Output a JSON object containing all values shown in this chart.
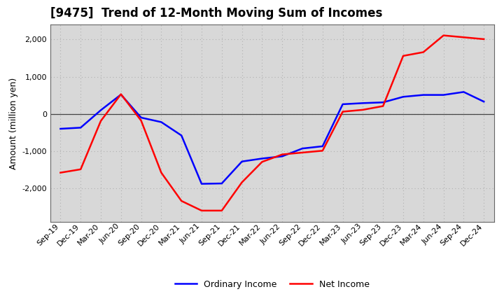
{
  "title": "[9475]  Trend of 12-Month Moving Sum of Incomes",
  "ylabel": "Amount (million yen)",
  "background_color": "#ffffff",
  "grid_color": "#b0b0b0",
  "plot_bg_color": "#d8d8d8",
  "x_labels": [
    "Sep-19",
    "Dec-19",
    "Mar-20",
    "Jun-20",
    "Sep-20",
    "Dec-20",
    "Mar-21",
    "Jun-21",
    "Sep-21",
    "Dec-21",
    "Mar-22",
    "Jun-22",
    "Sep-22",
    "Dec-22",
    "Mar-23",
    "Jun-23",
    "Sep-23",
    "Dec-23",
    "Mar-24",
    "Jun-24",
    "Sep-24",
    "Dec-24"
  ],
  "ordinary_income": [
    -400,
    -370,
    100,
    520,
    -100,
    -220,
    -580,
    -1880,
    -1870,
    -1280,
    -1200,
    -1140,
    -930,
    -870,
    260,
    290,
    310,
    460,
    510,
    510,
    590,
    330
  ],
  "net_income": [
    -1580,
    -1490,
    -190,
    530,
    -180,
    -1580,
    -2340,
    -2600,
    -2600,
    -1840,
    -1290,
    -1090,
    -1040,
    -990,
    60,
    110,
    210,
    1560,
    1660,
    2110,
    2060,
    2010
  ],
  "ylim": [
    -2900,
    2400
  ],
  "yticks": [
    -2000,
    -1000,
    0,
    1000,
    2000
  ],
  "ordinary_color": "#0000ff",
  "net_color": "#ff0000",
  "line_width": 1.8,
  "title_fontsize": 12,
  "ylabel_fontsize": 9,
  "tick_fontsize": 8
}
